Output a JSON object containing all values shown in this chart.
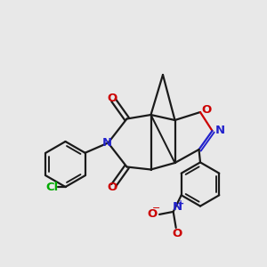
{
  "bg_color": "#e8e8e8",
  "bond_color": "#1a1a1a",
  "n_color": "#2222cc",
  "o_color": "#cc0000",
  "cl_color": "#00aa00",
  "line_width": 1.6,
  "xlim": [
    0,
    10
  ],
  "ylim": [
    0,
    10
  ]
}
